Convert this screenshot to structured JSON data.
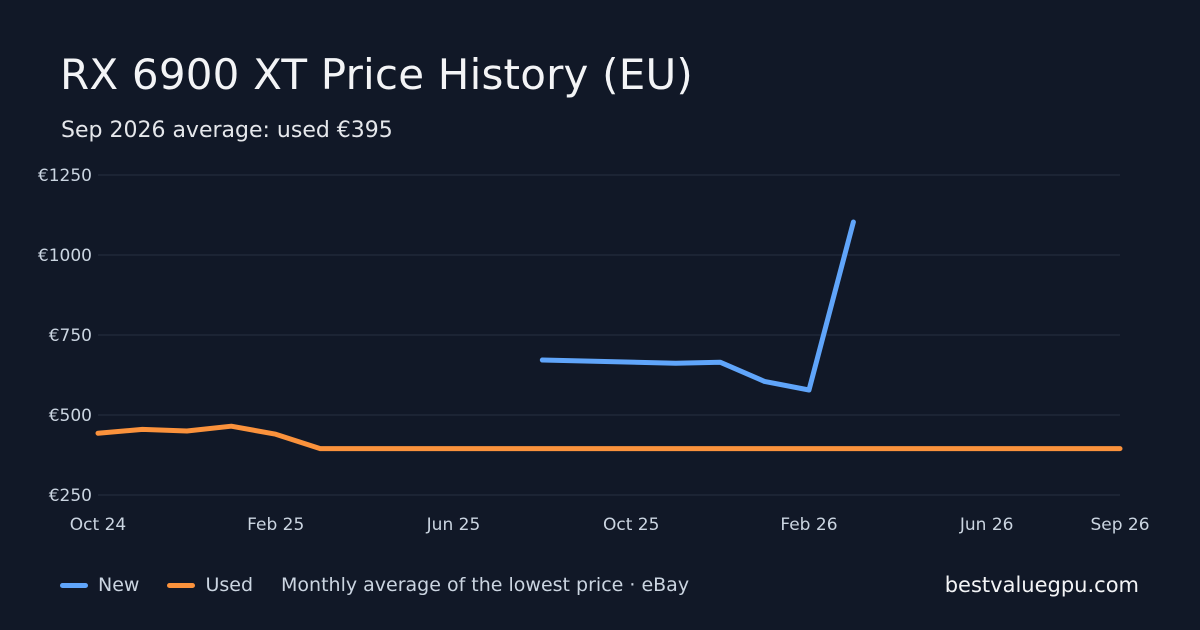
{
  "header": {
    "title": "RX 6900 XT Price History (EU)",
    "subtitle": "Sep 2026 average: used €395"
  },
  "legend": {
    "new_label": "New",
    "used_label": "Used",
    "note": "Monthly average of the lowest price · eBay",
    "colors": {
      "new": "#60a5fa",
      "used": "#fb923c"
    }
  },
  "brand": "bestvaluegpu.com",
  "chart_data": {
    "type": "line",
    "x_ticks": [
      "Oct 24",
      "Feb 25",
      "Jun 25",
      "Oct 25",
      "Feb 26",
      "Jun 26",
      "Sep 26"
    ],
    "x_tick_months": [
      "2024-10",
      "2025-02",
      "2025-06",
      "2025-10",
      "2026-02",
      "2026-06",
      "2026-09"
    ],
    "x_range": [
      "2024-10",
      "2026-09"
    ],
    "y_ticks": [
      "€250",
      "€500",
      "€750",
      "€1000",
      "€1250"
    ],
    "y_tick_values": [
      250,
      500,
      750,
      1000,
      1250
    ],
    "ylim": [
      250,
      1250
    ],
    "grid": true,
    "legend_position": "bottom-left",
    "series": [
      {
        "name": "New",
        "color": "#60a5fa",
        "points": [
          {
            "x": "2025-08",
            "y": 672
          },
          {
            "x": "2025-11",
            "y": 662
          },
          {
            "x": "2025-12",
            "y": 665
          },
          {
            "x": "2026-01",
            "y": 605
          },
          {
            "x": "2026-02",
            "y": 578
          },
          {
            "x": "2026-03",
            "y": 1103
          }
        ]
      },
      {
        "name": "Used",
        "color": "#fb923c",
        "points": [
          {
            "x": "2024-10",
            "y": 443
          },
          {
            "x": "2024-11",
            "y": 455
          },
          {
            "x": "2024-12",
            "y": 450
          },
          {
            "x": "2025-01",
            "y": 465
          },
          {
            "x": "2025-02",
            "y": 440
          },
          {
            "x": "2025-03",
            "y": 395
          },
          {
            "x": "2026-09",
            "y": 395
          }
        ]
      }
    ]
  }
}
